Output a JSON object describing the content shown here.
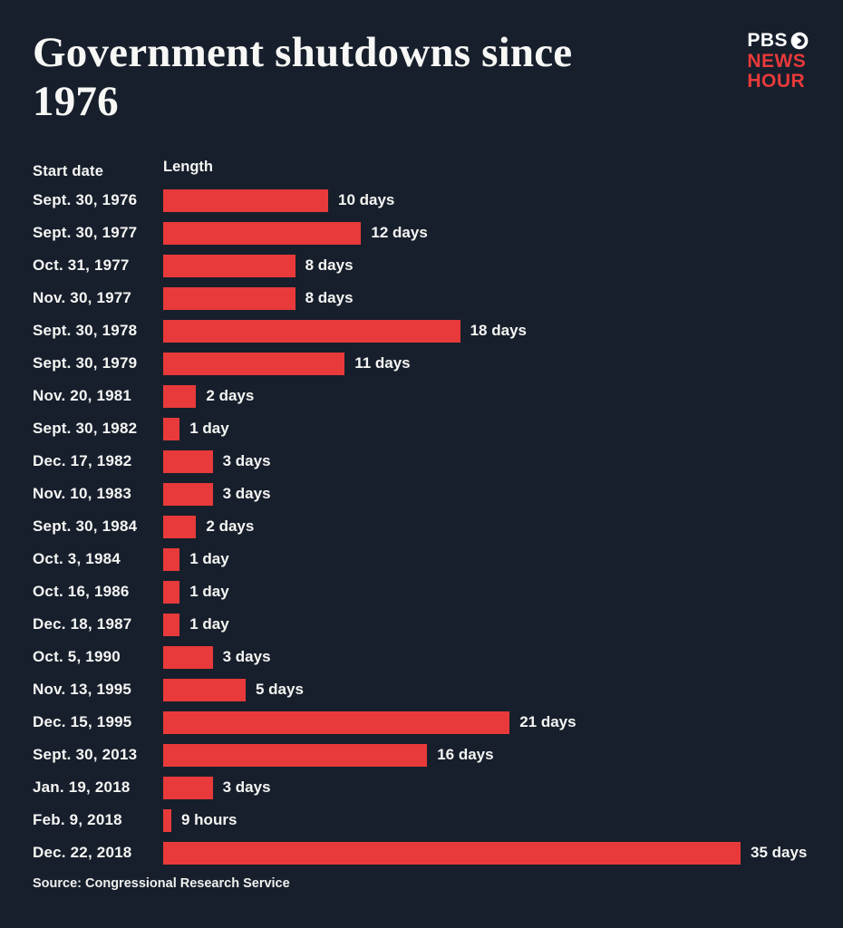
{
  "title": "Government shutdowns since 1976",
  "logo": {
    "pbs": "PBS",
    "news": "NEWS",
    "hour": "HOUR"
  },
  "columns": {
    "start_date": "Start date",
    "length": "Length"
  },
  "source": "Source: Congressional Research Service",
  "colors": {
    "background": "#171f2c",
    "bar": "#e83a3a",
    "text": "#ffffff"
  },
  "chart_data": {
    "type": "bar",
    "orientation": "horizontal",
    "title": "Government shutdowns since 1976",
    "xlabel": "Length",
    "ylabel": "Start date",
    "unit": "days",
    "xlim": [
      0,
      35
    ],
    "grid": false,
    "legend": "none",
    "rows": [
      {
        "date": "Sept. 30, 1976",
        "value": 10,
        "label": "10 days"
      },
      {
        "date": "Sept. 30, 1977",
        "value": 12,
        "label": "12 days"
      },
      {
        "date": "Oct. 31, 1977",
        "value": 8,
        "label": "8 days"
      },
      {
        "date": "Nov. 30, 1977",
        "value": 8,
        "label": "8 days"
      },
      {
        "date": "Sept. 30, 1978",
        "value": 18,
        "label": "18 days"
      },
      {
        "date": "Sept. 30, 1979",
        "value": 11,
        "label": "11 days"
      },
      {
        "date": "Nov. 20, 1981",
        "value": 2,
        "label": "2 days"
      },
      {
        "date": "Sept. 30, 1982",
        "value": 1,
        "label": "1 day"
      },
      {
        "date": "Dec. 17, 1982",
        "value": 3,
        "label": "3 days"
      },
      {
        "date": "Nov. 10, 1983",
        "value": 3,
        "label": "3 days"
      },
      {
        "date": "Sept. 30, 1984",
        "value": 2,
        "label": "2 days"
      },
      {
        "date": "Oct. 3, 1984",
        "value": 1,
        "label": "1 day"
      },
      {
        "date": "Oct. 16, 1986",
        "value": 1,
        "label": "1 day"
      },
      {
        "date": "Dec. 18, 1987",
        "value": 1,
        "label": "1 day"
      },
      {
        "date": "Oct. 5, 1990",
        "value": 3,
        "label": "3 days"
      },
      {
        "date": "Nov. 13, 1995",
        "value": 5,
        "label": "5 days"
      },
      {
        "date": "Dec. 15, 1995",
        "value": 21,
        "label": "21 days"
      },
      {
        "date": "Sept. 30, 2013",
        "value": 16,
        "label": "16 days"
      },
      {
        "date": "Jan. 19, 2018",
        "value": 3,
        "label": "3 days"
      },
      {
        "date": "Feb. 9, 2018",
        "value": 0.375,
        "label": "9 hours"
      },
      {
        "date": "Dec. 22, 2018",
        "value": 35,
        "label": "35 days"
      }
    ]
  }
}
